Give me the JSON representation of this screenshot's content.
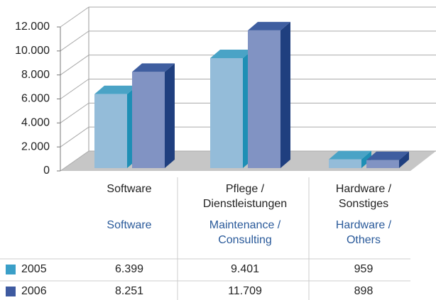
{
  "chart_data": {
    "type": "bar3d",
    "categories": [
      "Software",
      "Pflege /\nDienstleistungen",
      "Hardware /\nSonstiges"
    ],
    "categories_en": [
      "Software",
      "Maintenance /\nConsulting",
      "Hardware /\nOthers"
    ],
    "series": [
      {
        "name": "2005",
        "color": "#94bcd9",
        "side_color": "#1e8fb5",
        "top_color": "#4aa3c6",
        "legend_color": "#3a9fc8",
        "values": [
          6399,
          9401,
          959
        ],
        "value_labels": [
          "6.399",
          "9.401",
          "959"
        ]
      },
      {
        "name": "2006",
        "color": "#8193c3",
        "side_color": "#1f3f7f",
        "top_color": "#3f5ea0",
        "legend_color": "#3e5aa0",
        "values": [
          8251,
          11709,
          898
        ],
        "value_labels": [
          "8.251",
          "11.709",
          "898"
        ]
      }
    ],
    "ylim": [
      0,
      12000
    ],
    "yticks": [
      0,
      {
        "value": 2000,
        "label": "2.000"
      },
      {
        "value": 4000,
        "label": "4.000"
      },
      {
        "value": 6000,
        "label": "6.000"
      },
      {
        "value": 8000,
        "label": "8.000"
      },
      {
        "value": 10000,
        "label": "10.000"
      },
      {
        "value": 12000,
        "label": "12.000"
      }
    ],
    "grid": true
  }
}
